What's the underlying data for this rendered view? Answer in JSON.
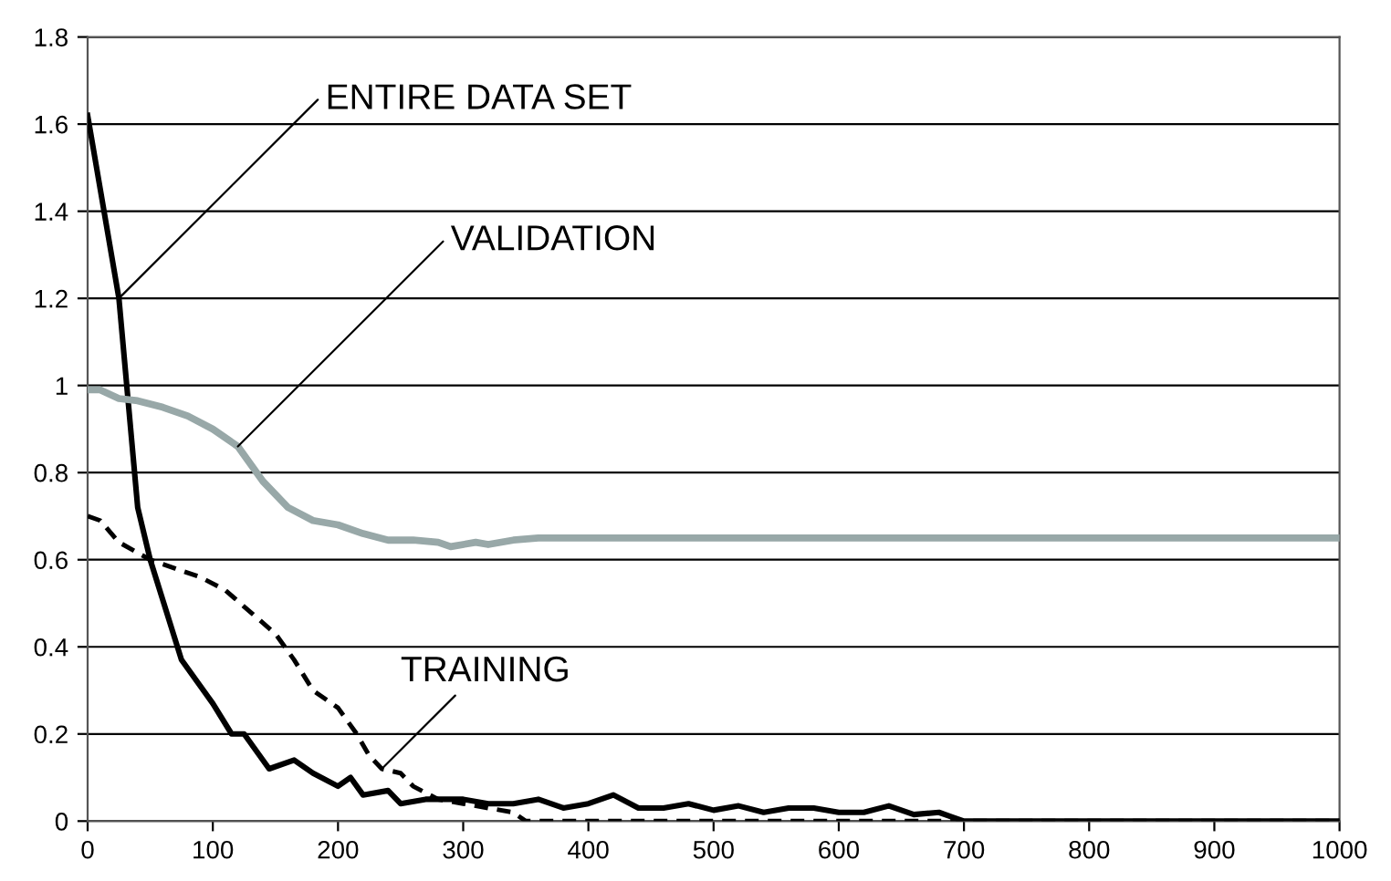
{
  "chart_data": {
    "type": "line",
    "xlim": [
      0,
      1000
    ],
    "xticks": [
      0,
      100,
      200,
      300,
      400,
      500,
      600,
      700,
      800,
      900,
      1000
    ],
    "ylim": [
      0,
      1.8
    ],
    "yticks": [
      0,
      0.2,
      0.4,
      0.6,
      0.8,
      1,
      1.2,
      1.4,
      1.6,
      1.8
    ],
    "grid": "y",
    "legend": false,
    "marker": "none",
    "series": [
      {
        "name": "ENTIRE DATA SET",
        "color": "#000000",
        "line_style": "solid",
        "x": [
          0,
          25,
          40,
          50,
          75,
          100,
          115,
          125,
          145,
          165,
          180,
          200,
          210,
          220,
          240,
          250,
          270,
          300,
          320,
          340,
          360,
          380,
          400,
          420,
          440,
          460,
          480,
          500,
          520,
          540,
          560,
          580,
          600,
          620,
          640,
          660,
          680,
          690,
          700,
          1000
        ],
        "values": [
          1.62,
          1.2,
          0.72,
          0.6,
          0.37,
          0.27,
          0.2,
          0.2,
          0.12,
          0.14,
          0.11,
          0.08,
          0.1,
          0.06,
          0.07,
          0.04,
          0.05,
          0.05,
          0.04,
          0.04,
          0.05,
          0.03,
          0.04,
          0.06,
          0.03,
          0.03,
          0.04,
          0.025,
          0.035,
          0.02,
          0.03,
          0.03,
          0.02,
          0.02,
          0.035,
          0.015,
          0.02,
          0.01,
          0,
          0
        ]
      },
      {
        "name": "VALIDATION",
        "color": "#98a8a8",
        "line_style": "solid",
        "x": [
          0,
          10,
          25,
          40,
          60,
          80,
          100,
          120,
          140,
          160,
          180,
          200,
          220,
          240,
          260,
          280,
          290,
          310,
          320,
          340,
          360,
          1000
        ],
        "values": [
          0.99,
          0.99,
          0.97,
          0.965,
          0.95,
          0.93,
          0.9,
          0.86,
          0.78,
          0.72,
          0.69,
          0.68,
          0.66,
          0.645,
          0.645,
          0.64,
          0.63,
          0.64,
          0.635,
          0.645,
          0.65,
          0.65
        ]
      },
      {
        "name": "TRAINING",
        "color": "#000000",
        "line_style": "dashed",
        "x": [
          0,
          10,
          25,
          50,
          70,
          90,
          110,
          130,
          150,
          165,
          180,
          200,
          215,
          225,
          235,
          250,
          260,
          280,
          300,
          320,
          340,
          350,
          1000
        ],
        "values": [
          0.7,
          0.69,
          0.64,
          0.6,
          0.58,
          0.56,
          0.53,
          0.48,
          0.43,
          0.37,
          0.3,
          0.26,
          0.2,
          0.15,
          0.12,
          0.11,
          0.08,
          0.05,
          0.04,
          0.03,
          0.02,
          0,
          0
        ]
      }
    ]
  }
}
